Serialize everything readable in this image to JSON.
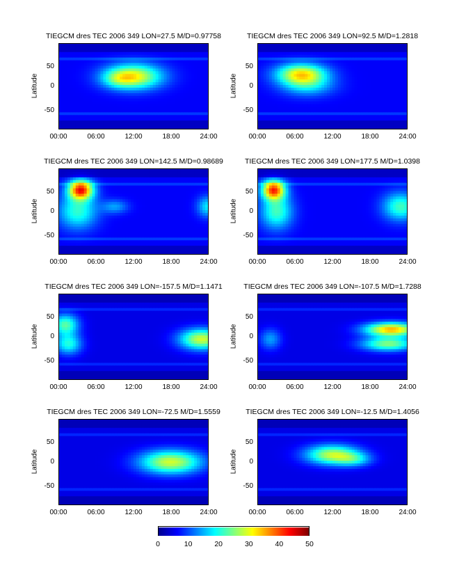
{
  "chart_data": [
    {
      "type": "heatmap",
      "title": "TIEGCM dres TEC 2006 349 LON=27.5 M/D=0.97758",
      "ylabel": "Latitude",
      "xticks": [
        "00:00",
        "06:00",
        "12:00",
        "18:00",
        "24:00"
      ],
      "yticks": [
        "50",
        "0",
        "-50"
      ],
      "xlim": [
        0,
        24
      ],
      "ylim": [
        -87.5,
        87.5
      ],
      "clim": [
        0,
        50
      ],
      "blobs": [
        {
          "x": 12,
          "y": 20,
          "sx": 3.2,
          "sy": 18,
          "v": 25
        },
        {
          "x": 9.5,
          "y": 15,
          "sx": 1.8,
          "sy": 12,
          "v": 7
        }
      ],
      "base": 6
    },
    {
      "type": "heatmap",
      "title": "TIEGCM dres TEC 2006 349 LON=92.5 M/D=1.2818",
      "ylabel": "Latitude",
      "xticks": [
        "00:00",
        "06:00",
        "12:00",
        "18:00",
        "24:00"
      ],
      "yticks": [
        "50",
        "0",
        "-50"
      ],
      "xlim": [
        0,
        24
      ],
      "ylim": [
        -87.5,
        87.5
      ],
      "clim": [
        0,
        50
      ],
      "blobs": [
        {
          "x": 7,
          "y": 25,
          "sx": 2.8,
          "sy": 15,
          "v": 26
        },
        {
          "x": 8,
          "y": 0,
          "sx": 3,
          "sy": 15,
          "v": 10
        }
      ],
      "base": 6
    },
    {
      "type": "heatmap",
      "title": "TIEGCM dres TEC 2006 349 LON=142.5 M/D=0.98689",
      "ylabel": "Latitude",
      "xticks": [
        "00:00",
        "06:00",
        "12:00",
        "18:00",
        "24:00"
      ],
      "yticks": [
        "50",
        "0",
        "-50"
      ],
      "xlim": [
        0,
        24
      ],
      "ylim": [
        -87.5,
        87.5
      ],
      "clim": [
        0,
        50
      ],
      "blobs": [
        {
          "x": 3.5,
          "y": 45,
          "sx": 1.4,
          "sy": 14,
          "v": 36
        },
        {
          "x": 3,
          "y": 0,
          "sx": 2.2,
          "sy": 25,
          "v": 15
        },
        {
          "x": 9,
          "y": 10,
          "sx": 1.5,
          "sy": 10,
          "v": 8
        },
        {
          "x": 24,
          "y": 10,
          "sx": 1.2,
          "sy": 15,
          "v": 12
        }
      ],
      "base": 6
    },
    {
      "type": "heatmap",
      "title": "TIEGCM dres TEC 2006 349 LON=177.5 M/D=1.0398",
      "ylabel": "Latitude",
      "xticks": [
        "00:00",
        "06:00",
        "12:00",
        "18:00",
        "24:00"
      ],
      "yticks": [
        "50",
        "0",
        "-50"
      ],
      "xlim": [
        0,
        24
      ],
      "ylim": [
        -87.5,
        87.5
      ],
      "clim": [
        0,
        50
      ],
      "blobs": [
        {
          "x": 2.5,
          "y": 45,
          "sx": 1.3,
          "sy": 14,
          "v": 34
        },
        {
          "x": 3,
          "y": 0,
          "sx": 1.8,
          "sy": 25,
          "v": 16
        },
        {
          "x": 23,
          "y": 10,
          "sx": 2,
          "sy": 20,
          "v": 16
        }
      ],
      "base": 6
    },
    {
      "type": "heatmap",
      "title": "TIEGCM dres TEC 2006 349 LON=-157.5 M/D=1.1471",
      "ylabel": "Latitude",
      "xticks": [
        "00:00",
        "06:00",
        "12:00",
        "18:00",
        "24:00"
      ],
      "yticks": [
        "50",
        "0",
        "-50"
      ],
      "xlim": [
        0,
        24
      ],
      "ylim": [
        -87.5,
        87.5
      ],
      "clim": [
        0,
        50
      ],
      "blobs": [
        {
          "x": 1,
          "y": 25,
          "sx": 1.5,
          "sy": 15,
          "v": 18
        },
        {
          "x": 1.5,
          "y": -15,
          "sx": 1.5,
          "sy": 15,
          "v": 15
        },
        {
          "x": 23,
          "y": -5,
          "sx": 2.5,
          "sy": 15,
          "v": 24
        }
      ],
      "base": 5
    },
    {
      "type": "heatmap",
      "title": "TIEGCM dres TEC 2006 349 LON=-107.5 M/D=1.7288",
      "ylabel": "Latitude",
      "xticks": [
        "00:00",
        "06:00",
        "12:00",
        "18:00",
        "24:00"
      ],
      "yticks": [
        "50",
        "0",
        "-50"
      ],
      "xlim": [
        0,
        24
      ],
      "ylim": [
        -87.5,
        87.5
      ],
      "clim": [
        0,
        50
      ],
      "blobs": [
        {
          "x": 21.5,
          "y": 15,
          "sx": 3,
          "sy": 10,
          "v": 30
        },
        {
          "x": 21,
          "y": -15,
          "sx": 3,
          "sy": 10,
          "v": 20
        },
        {
          "x": 2,
          "y": -5,
          "sx": 1.2,
          "sy": 15,
          "v": 9
        }
      ],
      "base": 5
    },
    {
      "type": "heatmap",
      "title": "TIEGCM dres TEC 2006 349 LON=-72.5 M/D=1.5559",
      "ylabel": "Latitude",
      "xticks": [
        "00:00",
        "06:00",
        "12:00",
        "18:00",
        "24:00"
      ],
      "yticks": [
        "50",
        "0",
        "-50"
      ],
      "xlim": [
        0,
        24
      ],
      "ylim": [
        -87.5,
        87.5
      ],
      "clim": [
        0,
        50
      ],
      "blobs": [
        {
          "x": 18,
          "y": 0,
          "sx": 3.5,
          "sy": 17,
          "v": 24
        }
      ],
      "base": 5
    },
    {
      "type": "heatmap",
      "title": "TIEGCM dres TEC 2006 349 LON=-12.5 M/D=1.4056",
      "ylabel": "Latitude",
      "xticks": [
        "00:00",
        "06:00",
        "12:00",
        "18:00",
        "24:00"
      ],
      "yticks": [
        "50",
        "0",
        "-50"
      ],
      "xlim": [
        0,
        24
      ],
      "ylim": [
        -87.5,
        87.5
      ],
      "clim": [
        0,
        50
      ],
      "blobs": [
        {
          "x": 12,
          "y": 15,
          "sx": 3,
          "sy": 14,
          "v": 23
        },
        {
          "x": 15.5,
          "y": 5,
          "sx": 2,
          "sy": 10,
          "v": 10
        }
      ],
      "base": 5
    }
  ],
  "colorbar": {
    "ticks": [
      "0",
      "10",
      "20",
      "30",
      "40",
      "50"
    ],
    "colormap": "jet"
  }
}
